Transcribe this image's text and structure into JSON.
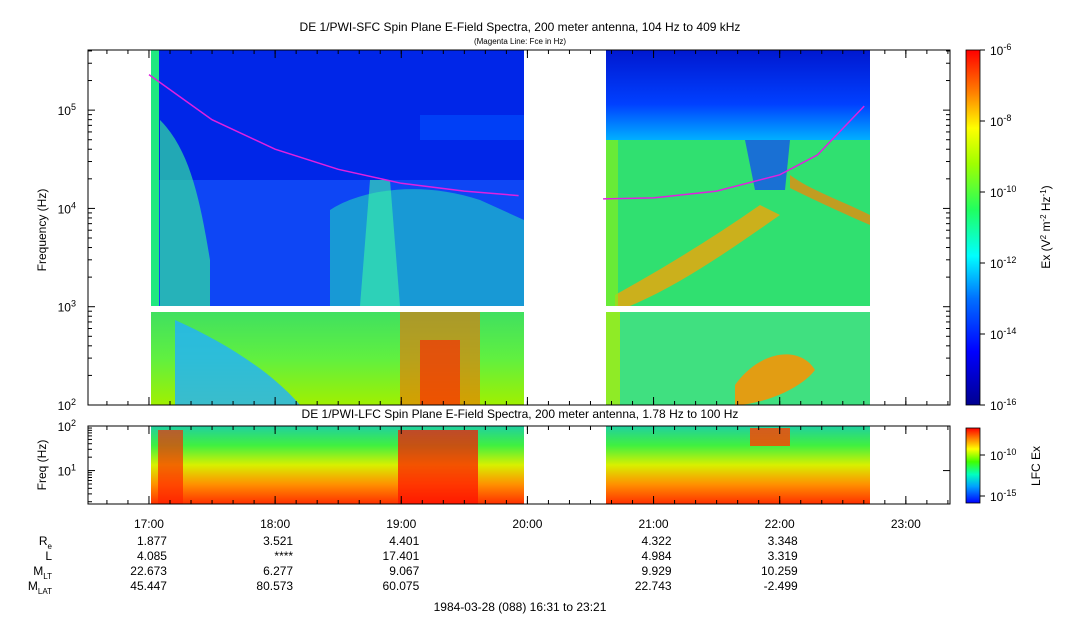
{
  "title": "DE 1/PWI-SFC  Spin Plane E-Field Spectra, 200 meter antenna, 104 Hz to 409 kHz",
  "subtitle": "(Magenta Line: Fce in Hz)",
  "chart_data": [
    {
      "type": "heatmap",
      "name": "SFC",
      "ylabel": "Frequency (Hz)",
      "yscale": "log",
      "yticks": [
        "10^2",
        "10^3",
        "10^4",
        "10^5"
      ],
      "ylim": [
        100,
        409000
      ],
      "colorbar": {
        "label": "Ex (V^2 m^-2 Hz^-1)",
        "scale": "log",
        "range": [
          1e-16,
          1e-06
        ],
        "ticks": [
          "10^-6",
          "10^-8",
          "10^-10",
          "10^-12",
          "10^-14",
          "10^-16"
        ]
      },
      "data_segments": [
        {
          "start": "16:59",
          "end": "19:56"
        },
        {
          "start": "20:36",
          "end": "22:40"
        }
      ],
      "fce_line": [
        {
          "segment": 0,
          "t": [
            17.0,
            17.5,
            18.0,
            18.5,
            19.0,
            19.5,
            19.93
          ],
          "fce_hz": [
            230000,
            80000,
            40000,
            25000,
            18000,
            15000,
            13500
          ]
        },
        {
          "segment": 1,
          "t": [
            20.6,
            21.0,
            21.5,
            22.0,
            22.3,
            22.67
          ],
          "fce_hz": [
            12500,
            12800,
            15000,
            22000,
            35000,
            110000
          ]
        }
      ]
    },
    {
      "type": "heatmap",
      "name": "LFC",
      "title": "DE 1/PWI-LFC  Spin Plane E-Field Spectra, 200 meter antenna, 1.78 Hz to 100 Hz",
      "ylabel": "Freq (Hz)",
      "yscale": "log",
      "yticks": [
        "10^1",
        "10^2"
      ],
      "ylim": [
        1.78,
        100
      ],
      "colorbar": {
        "label": "LFC Ex",
        "scale": "log",
        "ticks": [
          "10^-10",
          "10^-15"
        ]
      }
    }
  ],
  "xaxis": {
    "ticks": [
      "17:00",
      "18:00",
      "19:00",
      "20:00",
      "21:00",
      "22:00",
      "23:00"
    ],
    "range": [
      "16:31",
      "23:21"
    ]
  },
  "ephemeris": {
    "rows": [
      {
        "label": "R",
        "sub": "e",
        "values": [
          "1.877",
          "3.521",
          "4.401",
          "",
          "4.322",
          "3.348"
        ]
      },
      {
        "label": "L",
        "sub": "",
        "values": [
          "4.085",
          "****",
          "17.401",
          "",
          "4.984",
          "3.319"
        ]
      },
      {
        "label": "M",
        "sub": "LT",
        "values": [
          "22.673",
          "6.277",
          "9.067",
          "",
          "9.929",
          "10.259"
        ]
      },
      {
        "label": "M",
        "sub": "LAT",
        "values": [
          "45.447",
          "80.573",
          "60.075",
          "",
          "22.743",
          "-2.499"
        ]
      }
    ]
  },
  "date_range": "1984-03-28 (088) 16:31 to 23:21",
  "colors": {
    "fce_line": "#e020e0",
    "background": "#ffffff",
    "axis": "#000000"
  }
}
